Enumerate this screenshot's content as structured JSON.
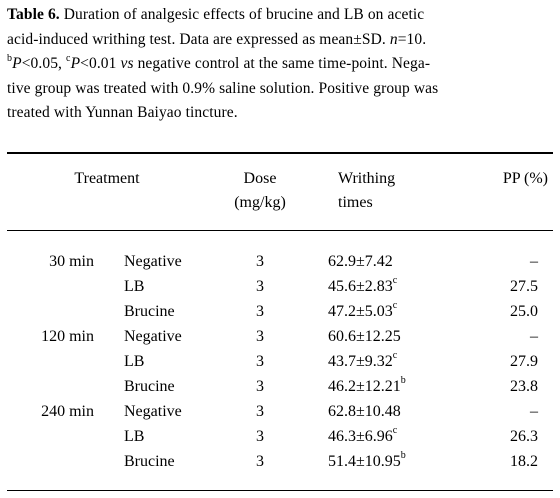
{
  "caption": {
    "label": "Table 6.",
    "line1_text": " Duration of analgesic effects of brucine and LB on acetic",
    "line2_pre": "acid-induced writhing test.  Data are expressed as mean±SD.  ",
    "line2_n": "n",
    "line2_post": "=10.",
    "line3_sup_b": "b",
    "line3_p1": "P",
    "line3_t1": "<0.05, ",
    "line3_sup_c": "c",
    "line3_p2": "P",
    "line3_t2": "<0.01 ",
    "line3_vs": "vs",
    "line3_t3": " negative control at the same time-point.  Nega-",
    "line4": "tive group was treated with 0.9% saline solution.  Positive group was",
    "line5": "treated with Yunnan Baiyao tincture."
  },
  "header": {
    "treatment": "Treatment",
    "dose_line1": "Dose",
    "dose_line2": "(mg/kg)",
    "writhing_line1": "Writhing",
    "writhing_line2": "times",
    "pp": "PP (%)"
  },
  "rows": [
    {
      "time": "30 min",
      "treatment": "Negative",
      "dose": "3",
      "writhing": "62.9±7.42",
      "sup": "",
      "pp": "–"
    },
    {
      "time": "",
      "treatment": "LB",
      "dose": "3",
      "writhing": "45.6±2.83",
      "sup": "c",
      "pp": "27.5"
    },
    {
      "time": "",
      "treatment": "Brucine",
      "dose": "3",
      "writhing": "47.2±5.03",
      "sup": "c",
      "pp": "25.0"
    },
    {
      "time": "120 min",
      "treatment": "Negative",
      "dose": "3",
      "writhing": "60.6±12.25",
      "sup": "",
      "pp": "–"
    },
    {
      "time": "",
      "treatment": "LB",
      "dose": "3",
      "writhing": "43.7±9.32",
      "sup": "c",
      "pp": "27.9"
    },
    {
      "time": "",
      "treatment": "Brucine",
      "dose": "3",
      "writhing": "46.2±12.21",
      "sup": "b",
      "pp": "23.8"
    },
    {
      "time": "240 min",
      "treatment": "Negative",
      "dose": "3",
      "writhing": "62.8±10.48",
      "sup": "",
      "pp": "–"
    },
    {
      "time": "",
      "treatment": "LB",
      "dose": "3",
      "writhing": "46.3±6.96",
      "sup": "c",
      "pp": "26.3"
    },
    {
      "time": "",
      "treatment": "Brucine",
      "dose": "3",
      "writhing": "51.4±10.95",
      "sup": "b",
      "pp": "18.2"
    }
  ]
}
